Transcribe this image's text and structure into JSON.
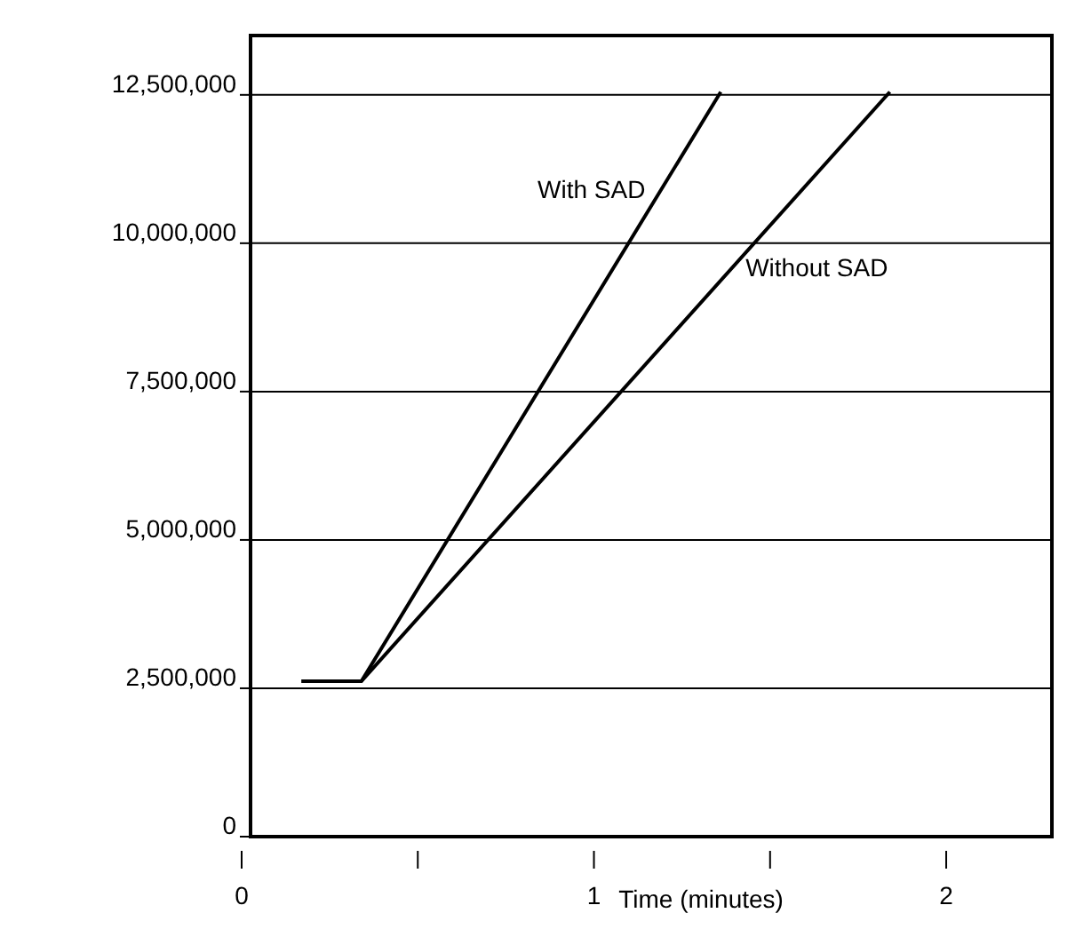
{
  "chart_data": {
    "type": "line",
    "xlabel": "Time (minutes)",
    "series": [
      {
        "name": "With SAD",
        "color": "#000000",
        "x": [
          0.17,
          0.34,
          1.36
        ],
        "values": [
          2620000,
          2620000,
          12550000
        ]
      },
      {
        "name": "Without SAD",
        "color": "#000000",
        "x": [
          0.17,
          0.34,
          1.84
        ],
        "values": [
          2620000,
          2620000,
          12550000
        ]
      }
    ],
    "xlim": [
      0,
      2.3
    ],
    "xticks": [
      0,
      {
        "value": 0.5,
        "label": null
      },
      1,
      {
        "value": 1.5,
        "label": null
      },
      2
    ],
    "ylim": [
      0,
      13500000
    ],
    "yticks": [
      0,
      {
        "value": 2500000,
        "label": "2,500,000"
      },
      {
        "value": 5000000,
        "label": "5,000,000"
      },
      {
        "value": 7500000,
        "label": "7,500,000"
      },
      {
        "value": 10000000,
        "label": "10,000,000"
      },
      {
        "value": 12500000,
        "label": "12,500,000"
      }
    ],
    "grid": "y",
    "marker": "none",
    "line_style": "solid"
  }
}
